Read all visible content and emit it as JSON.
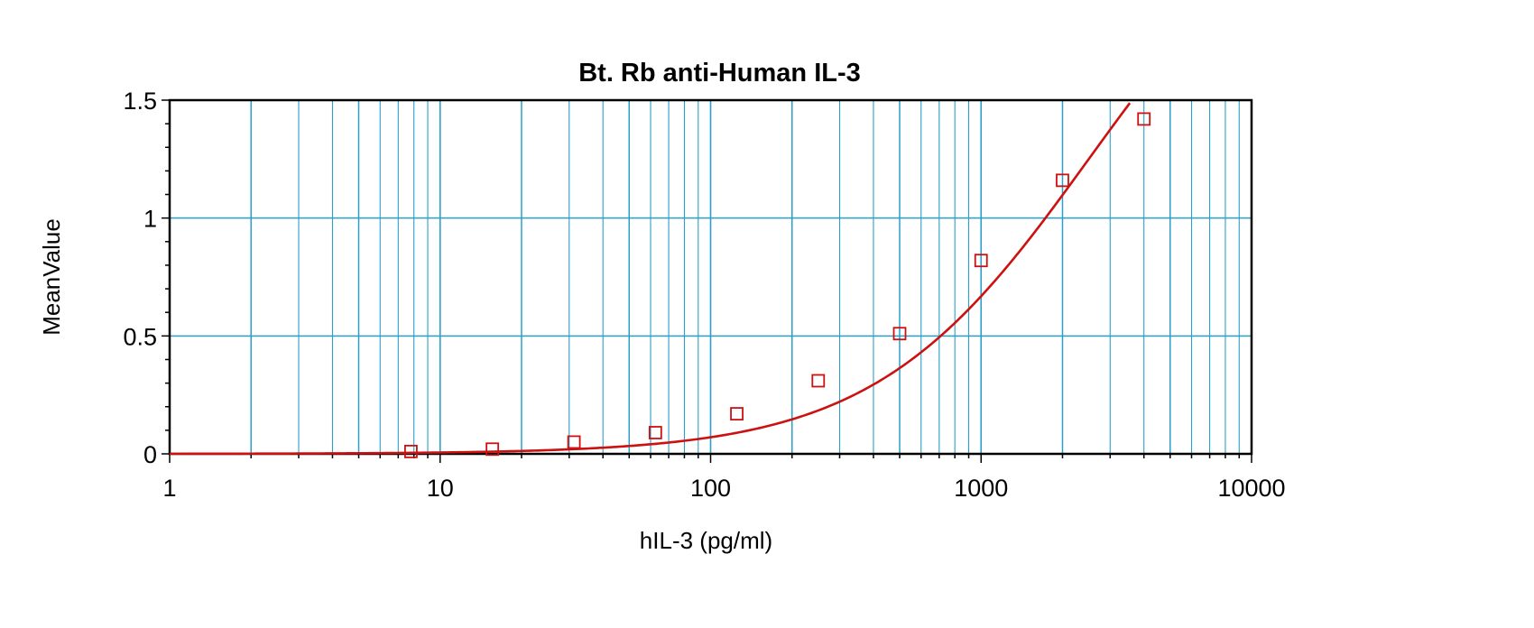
{
  "chart_data": {
    "type": "scatter",
    "title": "Bt. Rb anti-Human IL-3",
    "xlabel": "hIL-3 (pg/ml)",
    "ylabel": "MeanValue",
    "x_scale": "log",
    "xlim": [
      1,
      10000
    ],
    "ylim": [
      0,
      1.5
    ],
    "x_ticks": [
      {
        "value": 1,
        "label": "1"
      },
      {
        "value": 10,
        "label": "10"
      },
      {
        "value": 100,
        "label": "100"
      },
      {
        "value": 1000,
        "label": "1000"
      },
      {
        "value": 10000,
        "label": "10000"
      }
    ],
    "y_ticks": [
      {
        "value": 0,
        "label": "0"
      },
      {
        "value": 0.5,
        "label": "0.5"
      },
      {
        "value": 1,
        "label": "1"
      },
      {
        "value": 1.5,
        "label": "1.5"
      }
    ],
    "grid": true,
    "legend": "none",
    "series": [
      {
        "marker": "square",
        "x": [
          7.8,
          15.6,
          31.25,
          62.5,
          125,
          250,
          500,
          1000,
          2000,
          4000
        ],
        "y": [
          0.01,
          0.02,
          0.05,
          0.09,
          0.17,
          0.31,
          0.51,
          0.82,
          1.16,
          1.42
        ]
      }
    ],
    "fit_curve": {
      "type": "4PL",
      "A": 0.0,
      "B": 1.1,
      "C": 2500,
      "D": 2.5
    },
    "colors": {
      "grid": "#2aa0c8",
      "data": "#cc1111",
      "axis": "#000000"
    }
  }
}
